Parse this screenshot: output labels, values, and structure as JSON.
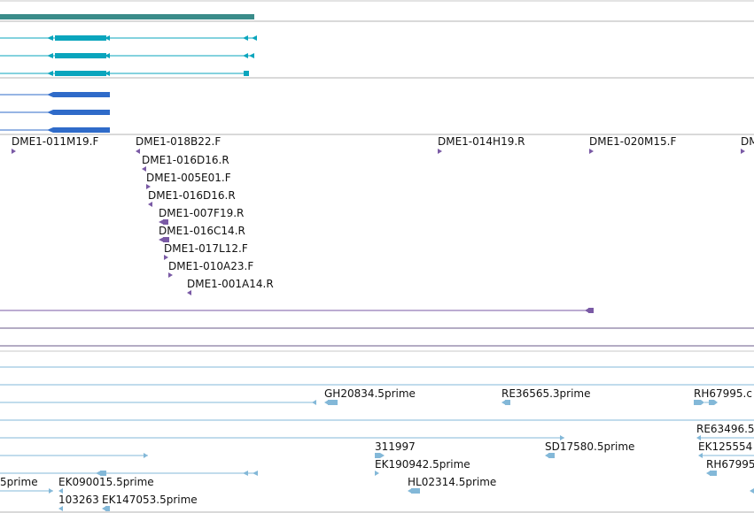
{
  "colors": {
    "gene_bar": "#3a8c8a",
    "transcript": "#0aa5bd",
    "cds": "#2f6bc9",
    "est_clone": "#7a5aa5",
    "cdna": "#83b8d8",
    "separator": "#b3b3b3"
  },
  "tracks": {
    "est_clones": {
      "labels": [
        "DME1-011M19.F",
        "DME1-018B22.F",
        "DME1-016D16.R",
        "DME1-005E01.F",
        "DME1-016D16.R",
        "DME1-007F19.R",
        "DME1-016C14.R",
        "DME1-017L12.F",
        "DME1-010A23.F",
        "DME1-001A14.R",
        "DME1-014H19.R",
        "DME1-020M15.F",
        "DM"
      ]
    },
    "cdna": {
      "labels": [
        "GH20834.5prime",
        "RE36565.3prime",
        "RH67995.c",
        "RE63496.5",
        "311997",
        "SD17580.5prime",
        "EK125554",
        "EK190942.5prime",
        "RH67995",
        "5prime",
        "EK090015.5prime",
        "HL02314.5prime",
        "103263",
        "EK147053.5prime"
      ]
    }
  }
}
